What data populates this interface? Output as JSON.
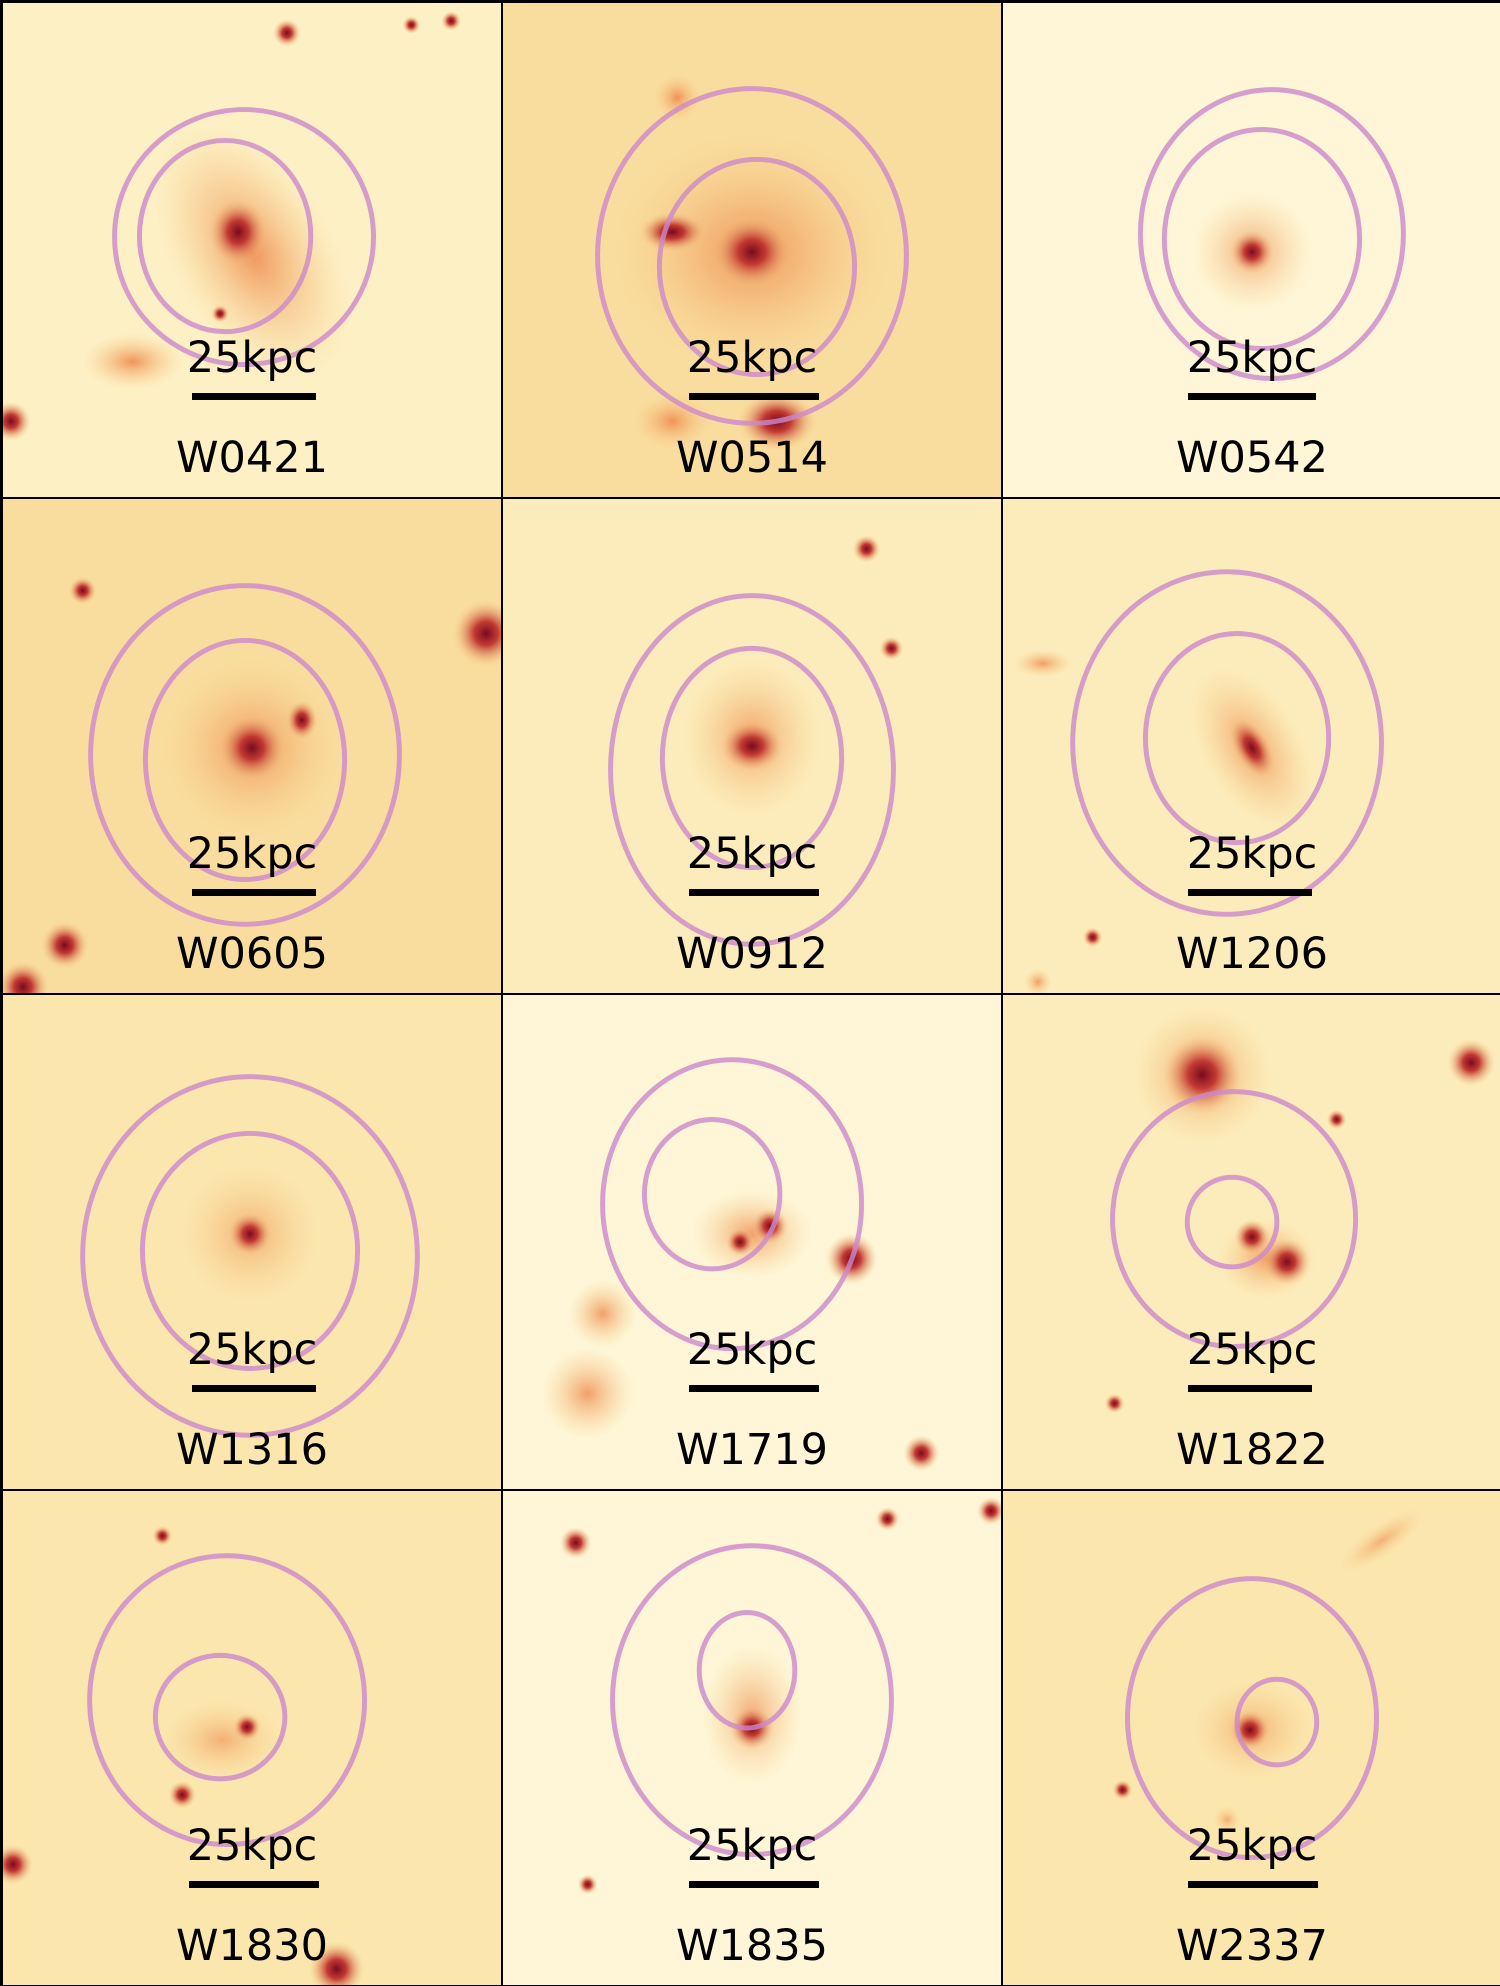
{
  "figure": {
    "colormap": {
      "background": "#fdf0c4",
      "faint": "#f7cc86",
      "mid": "#ee8a4e",
      "bright": "#c23a32",
      "core": "#7a0a1e"
    },
    "contour_color": "#cc88cc",
    "scale_bar_label": "25kpc",
    "panels": [
      {
        "name": "W0421"
      },
      {
        "name": "W0514"
      },
      {
        "name": "W0542"
      },
      {
        "name": "W0605"
      },
      {
        "name": "W0912"
      },
      {
        "name": "W1206"
      },
      {
        "name": "W1316"
      },
      {
        "name": "W1719"
      },
      {
        "name": "W1822"
      },
      {
        "name": "W1830"
      },
      {
        "name": "W1835"
      },
      {
        "name": "W2337"
      }
    ]
  }
}
